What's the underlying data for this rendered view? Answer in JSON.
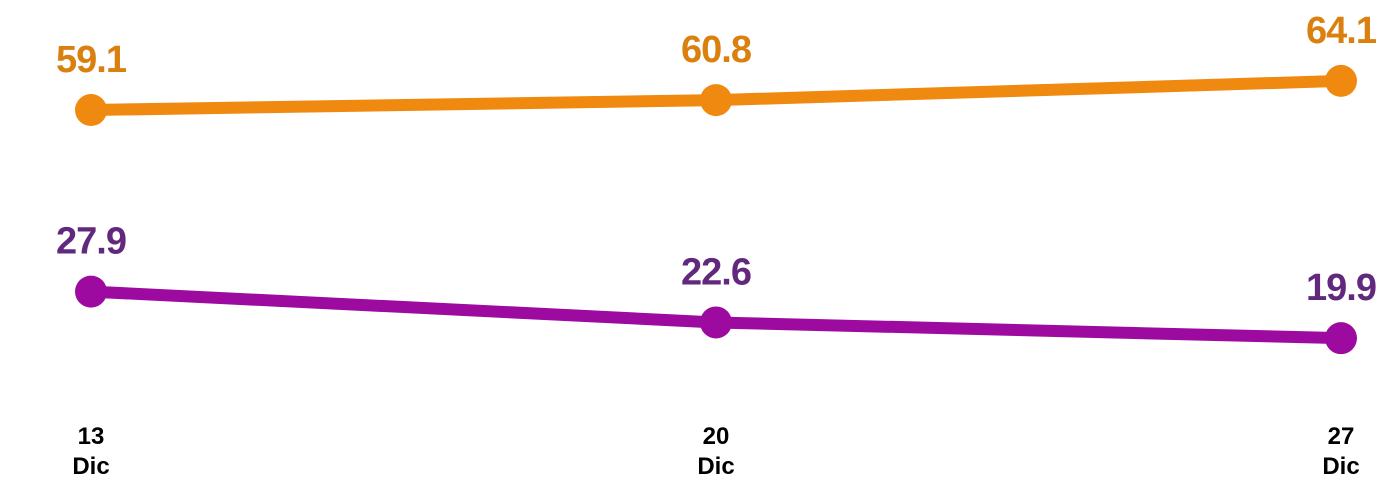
{
  "chart_data": {
    "type": "line",
    "categories": [
      "13\nDic",
      "20\nDic",
      "27\nDic"
    ],
    "series": [
      {
        "name": null,
        "color": "#f0890f",
        "label_color": "#d9800f",
        "values": [
          59.1,
          60.8,
          64.1
        ]
      },
      {
        "name": null,
        "color": "#9c0a9f",
        "label_color": "#62287e",
        "values": [
          27.9,
          22.6,
          19.9
        ]
      }
    ],
    "ylim": [
      0,
      78
    ]
  }
}
